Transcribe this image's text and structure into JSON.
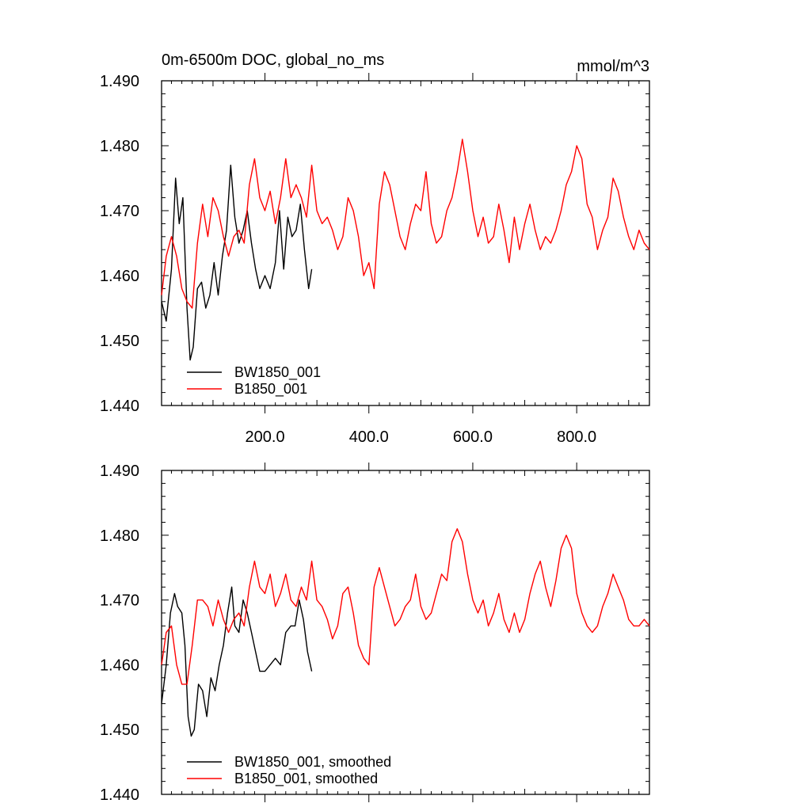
{
  "figure": {
    "title_left": "0m-6500m DOC, global_no_ms",
    "title_right": "mmol/m^3"
  },
  "chart_data": [
    {
      "type": "line",
      "title": "0m-6500m DOC, global_no_ms",
      "ylabel": "mmol/m^3",
      "xlabel": "",
      "xlim": [
        1,
        940
      ],
      "ylim": [
        1.44,
        1.49
      ],
      "xticks": [
        200.0,
        400.0,
        600.0,
        800.0
      ],
      "xtick_labels": [
        "200.0",
        "400.0",
        "600.0",
        "800.0"
      ],
      "yticks": [
        1.44,
        1.45,
        1.46,
        1.47,
        1.48,
        1.49
      ],
      "ytick_labels": [
        "1.440",
        "1.450",
        "1.460",
        "1.470",
        "1.480",
        "1.490"
      ],
      "grid": false,
      "legend_position": "bottom-left",
      "series": [
        {
          "name": "BW1850_001",
          "color": "#000000",
          "x": [
            1,
            10,
            20,
            28,
            35,
            42,
            50,
            56,
            62,
            70,
            78,
            86,
            94,
            102,
            110,
            118,
            126,
            134,
            142,
            150,
            158,
            166,
            174,
            182,
            190,
            200,
            210,
            220,
            228,
            236,
            244,
            252,
            260,
            268,
            276,
            284,
            290
          ],
          "y": [
            1.456,
            1.453,
            1.461,
            1.475,
            1.468,
            1.472,
            1.455,
            1.447,
            1.449,
            1.458,
            1.459,
            1.455,
            1.457,
            1.462,
            1.457,
            1.463,
            1.467,
            1.477,
            1.469,
            1.465,
            1.467,
            1.47,
            1.465,
            1.461,
            1.458,
            1.46,
            1.458,
            1.462,
            1.47,
            1.461,
            1.469,
            1.466,
            1.467,
            1.471,
            1.464,
            1.458,
            1.461
          ]
        },
        {
          "name": "B1850_001",
          "color": "#ff0000",
          "x": [
            1,
            10,
            20,
            30,
            40,
            50,
            60,
            70,
            80,
            90,
            100,
            110,
            120,
            130,
            140,
            150,
            160,
            170,
            180,
            190,
            200,
            210,
            220,
            230,
            240,
            250,
            260,
            270,
            280,
            290,
            300,
            310,
            320,
            330,
            340,
            350,
            360,
            370,
            380,
            390,
            400,
            410,
            420,
            430,
            440,
            450,
            460,
            470,
            480,
            490,
            500,
            510,
            520,
            530,
            540,
            550,
            560,
            570,
            580,
            590,
            600,
            610,
            620,
            630,
            640,
            650,
            660,
            670,
            680,
            690,
            700,
            710,
            720,
            730,
            740,
            750,
            760,
            770,
            780,
            790,
            800,
            810,
            820,
            830,
            840,
            850,
            860,
            870,
            880,
            890,
            900,
            910,
            920,
            930,
            940
          ],
          "y": [
            1.457,
            1.463,
            1.466,
            1.463,
            1.458,
            1.456,
            1.455,
            1.465,
            1.471,
            1.466,
            1.472,
            1.47,
            1.466,
            1.463,
            1.466,
            1.467,
            1.465,
            1.474,
            1.478,
            1.472,
            1.47,
            1.473,
            1.468,
            1.472,
            1.478,
            1.472,
            1.474,
            1.472,
            1.469,
            1.477,
            1.47,
            1.468,
            1.469,
            1.467,
            1.464,
            1.466,
            1.472,
            1.47,
            1.466,
            1.46,
            1.462,
            1.458,
            1.471,
            1.476,
            1.474,
            1.47,
            1.466,
            1.464,
            1.468,
            1.471,
            1.47,
            1.476,
            1.468,
            1.465,
            1.466,
            1.47,
            1.472,
            1.476,
            1.481,
            1.476,
            1.47,
            1.466,
            1.469,
            1.465,
            1.466,
            1.471,
            1.467,
            1.462,
            1.469,
            1.464,
            1.468,
            1.471,
            1.467,
            1.464,
            1.466,
            1.465,
            1.467,
            1.47,
            1.474,
            1.476,
            1.48,
            1.478,
            1.471,
            1.469,
            1.464,
            1.467,
            1.469,
            1.475,
            1.473,
            1.469,
            1.466,
            1.464,
            1.467,
            1.465,
            1.464
          ]
        }
      ]
    },
    {
      "type": "line",
      "title": "",
      "xlabel": "",
      "ylabel": "",
      "xlim": [
        1,
        940
      ],
      "ylim": [
        1.44,
        1.49
      ],
      "xticks": [
        200.0,
        400.0,
        600.0,
        800.0
      ],
      "xtick_labels": [],
      "yticks": [
        1.44,
        1.45,
        1.46,
        1.47,
        1.48,
        1.49
      ],
      "ytick_labels": [
        "1.440",
        "1.450",
        "1.460",
        "1.470",
        "1.480",
        "1.490"
      ],
      "grid": false,
      "legend_position": "bottom-left",
      "series": [
        {
          "name": "BW1850_001, smoothed",
          "color": "#000000",
          "x": [
            1,
            10,
            18,
            26,
            32,
            40,
            46,
            52,
            58,
            64,
            72,
            80,
            88,
            96,
            104,
            112,
            120,
            128,
            136,
            142,
            150,
            158,
            166,
            174,
            182,
            190,
            200,
            210,
            220,
            230,
            240,
            250,
            258,
            266,
            274,
            282,
            290
          ],
          "y": [
            1.454,
            1.46,
            1.468,
            1.471,
            1.469,
            1.468,
            1.463,
            1.452,
            1.449,
            1.45,
            1.457,
            1.456,
            1.452,
            1.458,
            1.456,
            1.46,
            1.463,
            1.468,
            1.472,
            1.466,
            1.465,
            1.47,
            1.468,
            1.465,
            1.462,
            1.459,
            1.459,
            1.46,
            1.461,
            1.46,
            1.465,
            1.466,
            1.466,
            1.47,
            1.467,
            1.462,
            1.459
          ]
        },
        {
          "name": "B1850_001, smoothed",
          "color": "#ff0000",
          "x": [
            1,
            10,
            20,
            30,
            40,
            50,
            60,
            70,
            80,
            90,
            100,
            110,
            120,
            130,
            140,
            150,
            160,
            170,
            180,
            190,
            200,
            210,
            220,
            230,
            240,
            250,
            260,
            270,
            280,
            290,
            300,
            310,
            320,
            330,
            340,
            350,
            360,
            370,
            380,
            390,
            400,
            410,
            420,
            430,
            440,
            450,
            460,
            470,
            480,
            490,
            500,
            510,
            520,
            530,
            540,
            550,
            560,
            570,
            580,
            590,
            600,
            610,
            620,
            630,
            640,
            650,
            660,
            670,
            680,
            690,
            700,
            710,
            720,
            730,
            740,
            750,
            760,
            770,
            780,
            790,
            800,
            810,
            820,
            830,
            840,
            850,
            860,
            870,
            880,
            890,
            900,
            910,
            920,
            930,
            940
          ],
          "y": [
            1.46,
            1.465,
            1.466,
            1.46,
            1.457,
            1.457,
            1.463,
            1.47,
            1.47,
            1.469,
            1.466,
            1.47,
            1.467,
            1.465,
            1.467,
            1.468,
            1.466,
            1.472,
            1.476,
            1.472,
            1.471,
            1.474,
            1.469,
            1.471,
            1.474,
            1.47,
            1.469,
            1.472,
            1.47,
            1.476,
            1.47,
            1.469,
            1.467,
            1.464,
            1.466,
            1.471,
            1.472,
            1.468,
            1.463,
            1.461,
            1.46,
            1.472,
            1.475,
            1.472,
            1.469,
            1.466,
            1.467,
            1.469,
            1.47,
            1.474,
            1.469,
            1.467,
            1.468,
            1.471,
            1.474,
            1.473,
            1.479,
            1.481,
            1.479,
            1.474,
            1.47,
            1.468,
            1.47,
            1.466,
            1.468,
            1.471,
            1.467,
            1.465,
            1.468,
            1.465,
            1.467,
            1.471,
            1.474,
            1.476,
            1.472,
            1.469,
            1.473,
            1.478,
            1.48,
            1.478,
            1.471,
            1.468,
            1.466,
            1.465,
            1.466,
            1.469,
            1.471,
            1.474,
            1.472,
            1.47,
            1.467,
            1.466,
            1.466,
            1.467,
            1.466
          ]
        }
      ]
    }
  ]
}
